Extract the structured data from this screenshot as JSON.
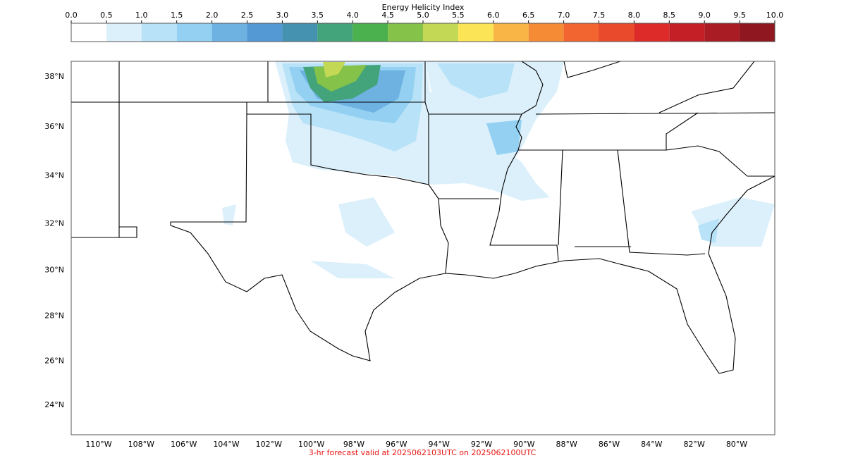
{
  "colorbar": {
    "title": "Energy Helicity Index",
    "ticks": [
      {
        "value": 0,
        "label": "0.0"
      },
      {
        "value": 0.5,
        "label": "0.5"
      },
      {
        "value": 1,
        "label": "1.0"
      },
      {
        "value": 1.5,
        "label": "1.5"
      },
      {
        "value": 2,
        "label": "2.0"
      },
      {
        "value": 2.5,
        "label": "2.5"
      },
      {
        "value": 3,
        "label": "3.0"
      },
      {
        "value": 3.5,
        "label": "3.5"
      },
      {
        "value": 4,
        "label": "4.0"
      },
      {
        "value": 4.5,
        "label": "4.5"
      },
      {
        "value": 5,
        "label": "5.0"
      },
      {
        "value": 5.5,
        "label": "5.5"
      },
      {
        "value": 6,
        "label": "6.0"
      },
      {
        "value": 6.5,
        "label": "6.5"
      },
      {
        "value": 7,
        "label": "7.0"
      },
      {
        "value": 7.5,
        "label": "7.5"
      },
      {
        "value": 8,
        "label": "8.0"
      },
      {
        "value": 8.5,
        "label": "8.5"
      },
      {
        "value": 9,
        "label": "9.0"
      },
      {
        "value": 9.5,
        "label": "9.5"
      },
      {
        "value": 10,
        "label": "10.0"
      }
    ],
    "colors": [
      "#ffffff",
      "#dcf0fb",
      "#b8e2f7",
      "#93d0f1",
      "#6eb2e2",
      "#5499d3",
      "#4591b0",
      "#43a37a",
      "#4bb04e",
      "#84c24a",
      "#c3d955",
      "#fbe556",
      "#f9b646",
      "#f68b36",
      "#f26430",
      "#e84a2b",
      "#dc2b28",
      "#c41f26",
      "#aa1c23",
      "#8e1720"
    ]
  },
  "map": {
    "lat_ticks": [
      {
        "value": 38,
        "label": "38°N"
      },
      {
        "value": 36,
        "label": "36°N"
      },
      {
        "value": 34,
        "label": "34°N"
      },
      {
        "value": 32,
        "label": "32°N"
      },
      {
        "value": 30,
        "label": "30°N"
      },
      {
        "value": 28,
        "label": "28°N"
      },
      {
        "value": 26,
        "label": "26°N"
      },
      {
        "value": 24,
        "label": "24°N"
      }
    ],
    "lon_ticks": [
      {
        "value": -110,
        "label": "110°W"
      },
      {
        "value": -108,
        "label": "108°W"
      },
      {
        "value": -106,
        "label": "106°W"
      },
      {
        "value": -104,
        "label": "104°W"
      },
      {
        "value": -102,
        "label": "102°W"
      },
      {
        "value": -100,
        "label": "100°W"
      },
      {
        "value": -98,
        "label": "98°W"
      },
      {
        "value": -96,
        "label": "96°W"
      },
      {
        "value": -94,
        "label": "94°W"
      },
      {
        "value": -92,
        "label": "92°W"
      },
      {
        "value": -90,
        "label": "90°W"
      },
      {
        "value": -88,
        "label": "88°W"
      },
      {
        "value": -86,
        "label": "86°W"
      },
      {
        "value": -84,
        "label": "84°W"
      },
      {
        "value": -82,
        "label": "82°W"
      },
      {
        "value": -80,
        "label": "80°W"
      }
    ]
  },
  "footer": "3-hr forecast valid at 2025062103UTC on 2025062100UTC"
}
